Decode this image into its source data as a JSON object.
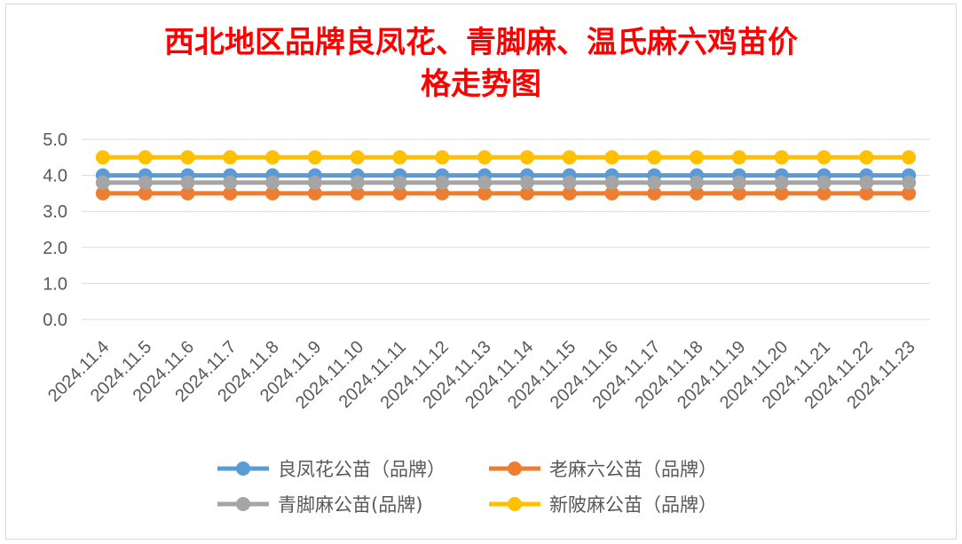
{
  "chart_data": {
    "type": "line",
    "title_lines": [
      "西北地区品牌良凤花、青脚麻、温氏麻六鸡苗价",
      "格走势图"
    ],
    "xlabel": "",
    "ylabel": "",
    "ylim": [
      0,
      5
    ],
    "yticks": [
      "0.0",
      "1.0",
      "2.0",
      "3.0",
      "4.0",
      "5.0"
    ],
    "grid": true,
    "legend_position": "bottom",
    "categories": [
      "2024.11.4",
      "2024.11.5",
      "2024.11.6",
      "2024.11.7",
      "2024.11.8",
      "2024.11.9",
      "2024.11.10",
      "2024.11.11",
      "2024.11.12",
      "2024.11.13",
      "2024.11.14",
      "2024.11.15",
      "2024.11.16",
      "2024.11.17",
      "2024.11.18",
      "2024.11.19",
      "2024.11.20",
      "2024.11.21",
      "2024.11.22",
      "2024.11.23"
    ],
    "series": [
      {
        "name": "良凤花公苗（品牌）",
        "color": "#5b9bd5",
        "values": [
          4.0,
          4.0,
          4.0,
          4.0,
          4.0,
          4.0,
          4.0,
          4.0,
          4.0,
          4.0,
          4.0,
          4.0,
          4.0,
          4.0,
          4.0,
          4.0,
          4.0,
          4.0,
          4.0,
          4.0
        ]
      },
      {
        "name": "老麻六公苗（品牌）",
        "color": "#ed7d31",
        "values": [
          3.5,
          3.5,
          3.5,
          3.5,
          3.5,
          3.5,
          3.5,
          3.5,
          3.5,
          3.5,
          3.5,
          3.5,
          3.5,
          3.5,
          3.5,
          3.5,
          3.5,
          3.5,
          3.5,
          3.5
        ]
      },
      {
        "name": "青脚麻公苗(品牌)",
        "color": "#a5a5a5",
        "values": [
          3.8,
          3.8,
          3.8,
          3.8,
          3.8,
          3.8,
          3.8,
          3.8,
          3.8,
          3.8,
          3.8,
          3.8,
          3.8,
          3.8,
          3.8,
          3.8,
          3.8,
          3.8,
          3.8,
          3.8
        ]
      },
      {
        "name": "新陂麻公苗（品牌）",
        "color": "#ffc000",
        "values": [
          4.5,
          4.5,
          4.5,
          4.5,
          4.5,
          4.5,
          4.5,
          4.5,
          4.5,
          4.5,
          4.5,
          4.5,
          4.5,
          4.5,
          4.5,
          4.5,
          4.5,
          4.5,
          4.5,
          4.5
        ]
      }
    ]
  }
}
